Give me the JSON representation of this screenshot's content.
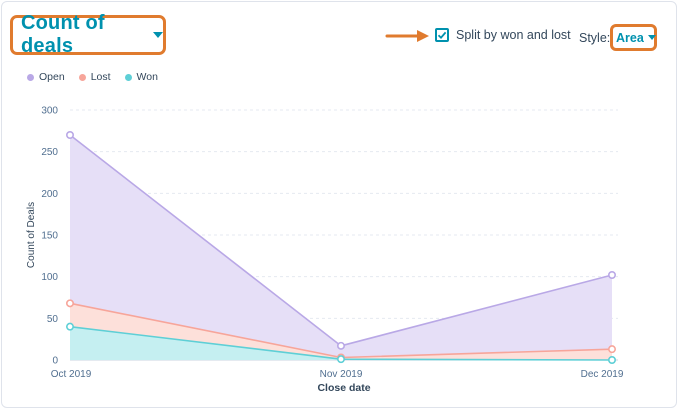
{
  "header": {
    "metric_label": "Count of deals",
    "split_label": "Split by won and lost",
    "split_checked": true,
    "style_label": "Style:",
    "style_value": "Area"
  },
  "legend": [
    {
      "label": "Open",
      "color": "#b9a8e6"
    },
    {
      "label": "Lost",
      "color": "#f7a59a"
    },
    {
      "label": "Won",
      "color": "#5ecfd6"
    }
  ],
  "colors": {
    "accent": "#0091ae",
    "annotation": "#e07b2e",
    "text": "#33475b"
  },
  "chart_data": {
    "type": "area",
    "categories": [
      "Oct 2019",
      "Nov 2019",
      "Dec 2019"
    ],
    "series": [
      {
        "name": "Open",
        "values": [
          270,
          17,
          102
        ],
        "color": "#b9a8e6",
        "fill": "#e6dff7"
      },
      {
        "name": "Lost",
        "values": [
          68,
          3,
          13
        ],
        "color": "#f7a59a",
        "fill": "#fde0da"
      },
      {
        "name": "Won",
        "values": [
          40,
          1,
          0
        ],
        "color": "#5ecfd6",
        "fill": "#c5eff1"
      }
    ],
    "ylabel": "Count of Deals",
    "xlabel": "Close date",
    "ylim": [
      0,
      300
    ],
    "yticks": [
      0,
      50,
      100,
      150,
      200,
      250,
      300
    ],
    "grid": true,
    "legend_position": "top-left"
  }
}
